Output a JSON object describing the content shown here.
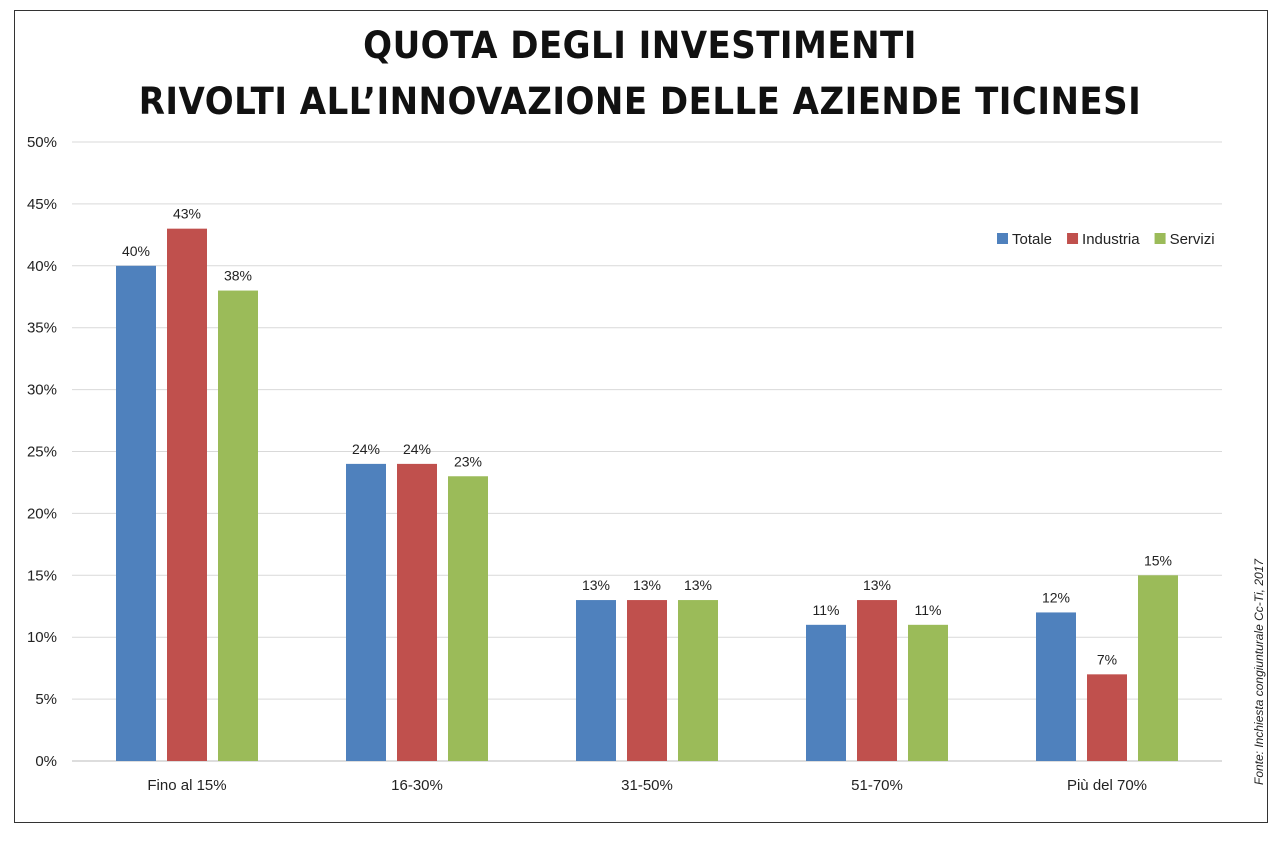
{
  "chart_data": {
    "type": "bar",
    "title": "QUOTA DEGLI INVESTIMENTI",
    "subtitle": "RIVOLTI ALL’INNOVAZIONE DELLE AZIENDE TICINESI",
    "categories": [
      "Fino al 15%",
      "16-30%",
      "31-50%",
      "51-70%",
      "Più del 70%"
    ],
    "series": [
      {
        "name": "Totale",
        "color": "#4f81bd",
        "values": [
          40,
          24,
          13,
          11,
          12
        ],
        "labels": [
          "40%",
          "24%",
          "13%",
          "11%",
          "12%"
        ]
      },
      {
        "name": "Industria",
        "color": "#c0504d",
        "values": [
          43,
          24,
          13,
          13,
          7
        ],
        "labels": [
          "43%",
          "24%",
          "13%",
          "13%",
          "7%"
        ]
      },
      {
        "name": "Servizi",
        "color": "#9bbb59",
        "values": [
          38,
          23,
          13,
          11,
          15
        ],
        "labels": [
          "38%",
          "23%",
          "13%",
          "11%",
          "15%"
        ]
      }
    ],
    "ylim": [
      0,
      50
    ],
    "yticks": [
      0,
      5,
      10,
      15,
      20,
      25,
      30,
      35,
      40,
      45,
      50
    ],
    "ytick_labels": [
      "0%",
      "5%",
      "10%",
      "15%",
      "20%",
      "25%",
      "30%",
      "35%",
      "40%",
      "45%",
      "50%"
    ],
    "grid": true,
    "legend_position": "top-right",
    "source": "Fonte: Inchiesta congiunturale Cc-Ti, 2017"
  }
}
